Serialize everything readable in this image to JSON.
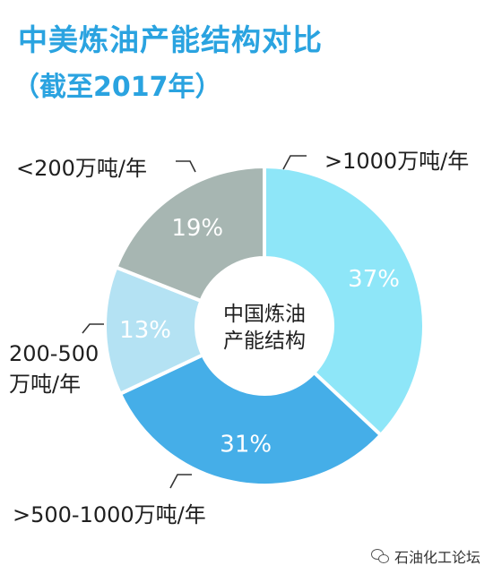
{
  "title": "中美炼油产能结构对比",
  "subtitle": "（截至2017年）",
  "watermark": "石油化工论坛",
  "chart_data": {
    "type": "pie",
    "donut": true,
    "center_label": [
      "中国炼油",
      "产能结构"
    ],
    "slices": [
      {
        "label": ">1000万吨/年",
        "value": 37,
        "display": "37%",
        "color": "#8ee6f8"
      },
      {
        "label": ">500-1000万吨/年",
        "value": 31,
        "display": "31%",
        "color": "#45aee8"
      },
      {
        "label": "200-500万吨/年",
        "value": 13,
        "display": "13%",
        "color": "#b4e2f3"
      },
      {
        "label": "<200万吨/年",
        "value": 19,
        "display": "19%",
        "color": "#a7b6b2"
      }
    ],
    "outer_labels": {
      "s0": ">1000万吨/年",
      "s1": ">500-1000万吨/年",
      "s2_line1": "200-500",
      "s2_line2": "万吨/年",
      "s3": "<200万吨/年"
    }
  }
}
